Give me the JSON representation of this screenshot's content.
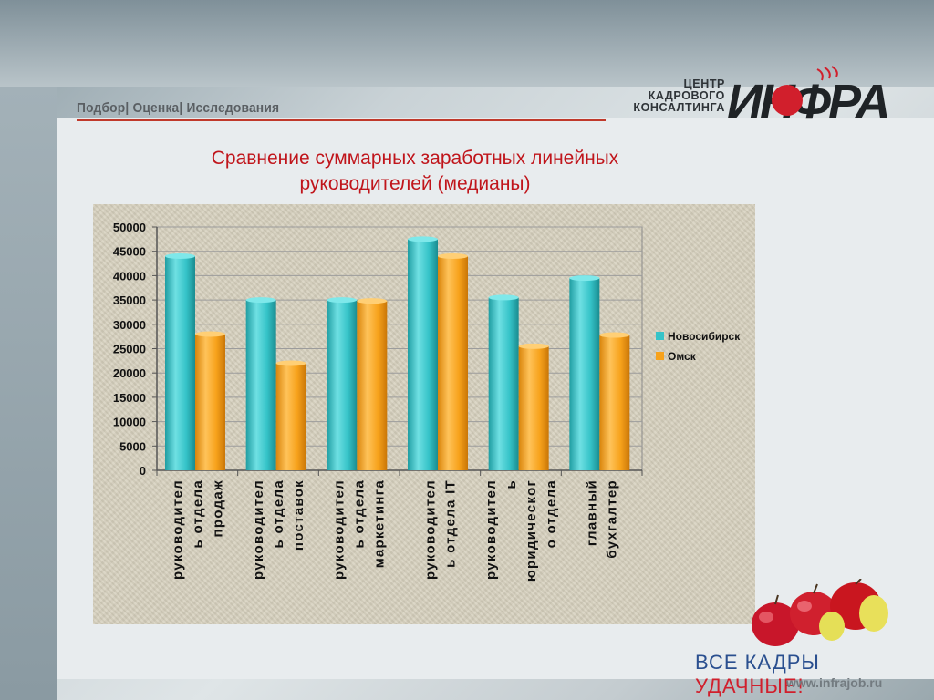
{
  "header": {
    "tagline": "Подбор| Оценка| Исследования",
    "logo_line1": "ЦЕНТР",
    "logo_line2": "КАДРОВОГО",
    "logo_line3": "КОНСАЛТИНГА",
    "logo_brand": "ИНФРА"
  },
  "slide": {
    "title_line1": "Сравнение суммарных заработных линейных",
    "title_line2": "руководителей (медианы)"
  },
  "footer": {
    "slogan_part1": "ВСЕ КАДРЫ ",
    "slogan_part2": "УДАЧНЫЕ!",
    "url": "www.infrajob.ru"
  },
  "colors": {
    "title_red": "#c0151b",
    "series1": "#35c3c8",
    "series2": "#f7a21b",
    "brand_red": "#d11f2c",
    "brand_blue": "#2a4f8f"
  },
  "chart_data": {
    "type": "bar",
    "title": "",
    "xlabel": "",
    "ylabel": "",
    "ylim": [
      0,
      50000
    ],
    "yticks": [
      0,
      5000,
      10000,
      15000,
      20000,
      25000,
      30000,
      35000,
      40000,
      45000,
      50000
    ],
    "grid": true,
    "legend": "right",
    "categories": [
      [
        "руководител",
        "ь отдела",
        "продаж"
      ],
      [
        "руководител",
        "ь отдела",
        "поставок"
      ],
      [
        "руководител",
        "ь отдела",
        "маркетинга"
      ],
      [
        "руководител",
        "ь отдела IT"
      ],
      [
        "руководител",
        "ь",
        "юридическог",
        "о отдела"
      ],
      [
        "главный",
        "бухгалтер"
      ]
    ],
    "series": [
      {
        "name": "Новосибирск",
        "values": [
          44000,
          35000,
          35000,
          47500,
          35500,
          39500
        ]
      },
      {
        "name": "Омск",
        "values": [
          28000,
          22000,
          34800,
          44000,
          25500,
          27800
        ]
      }
    ]
  }
}
